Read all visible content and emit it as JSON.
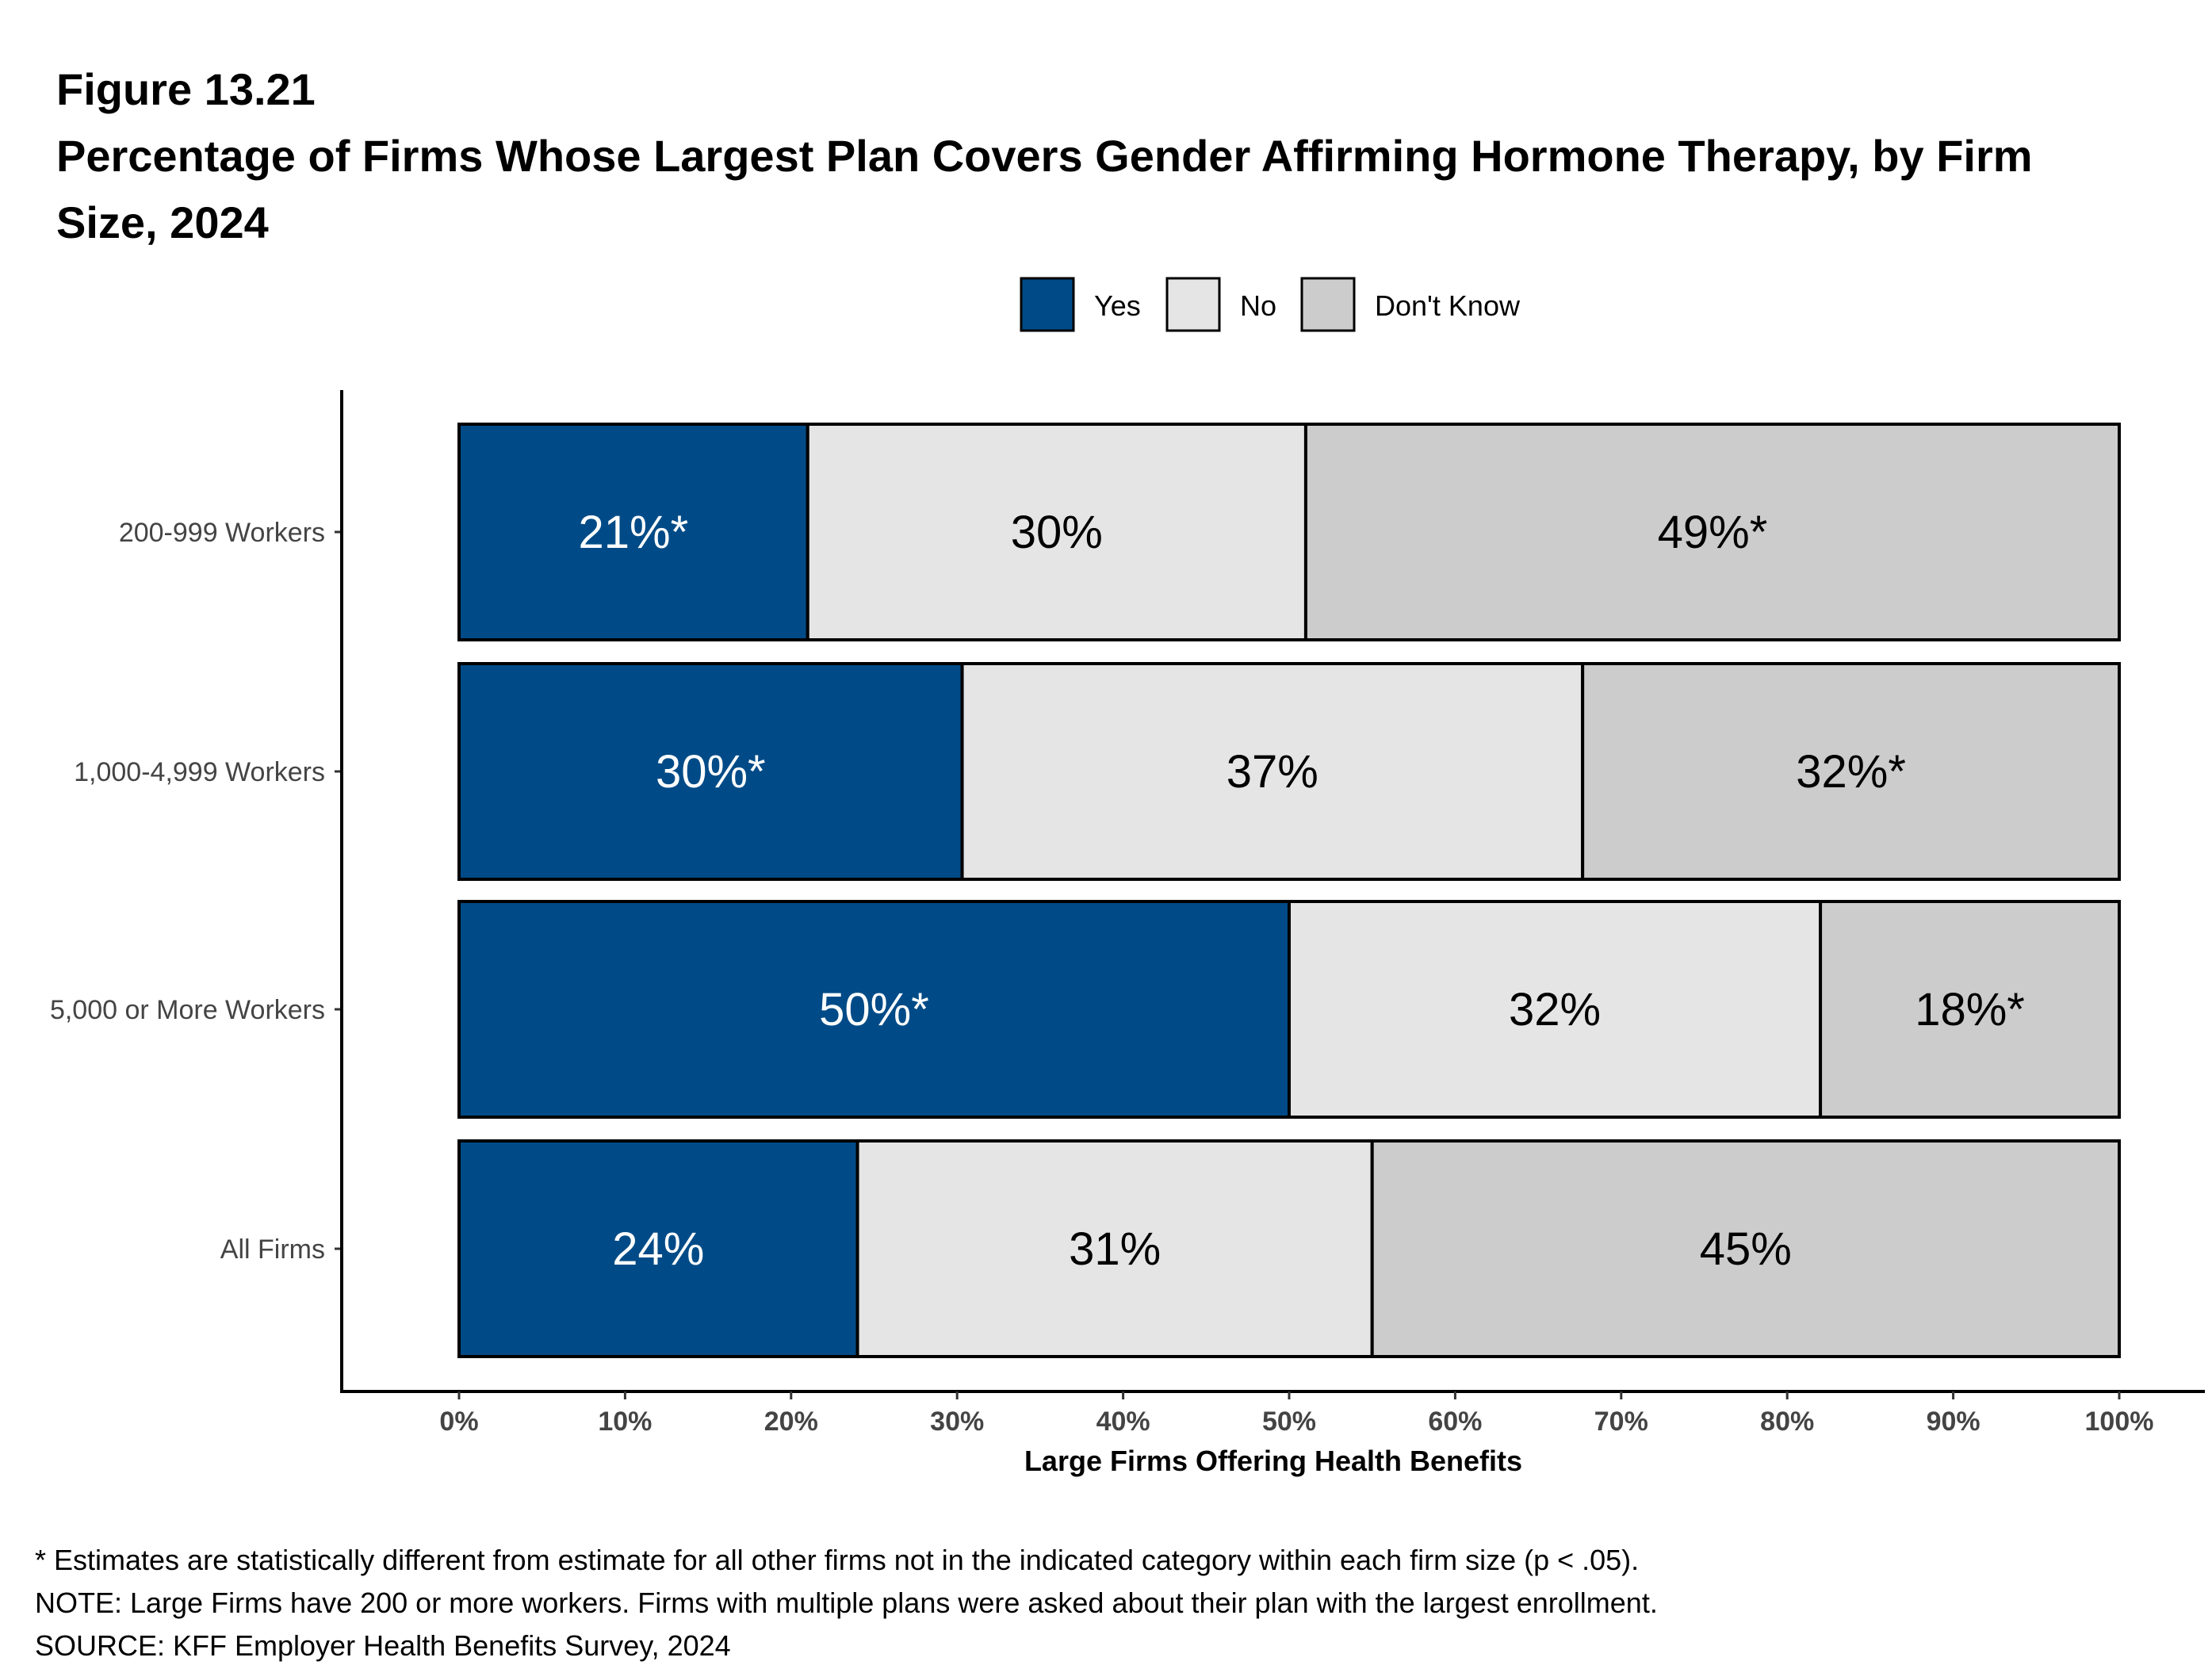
{
  "figure_label": "Figure 13.21",
  "title_line1": "Percentage of Firms Whose Largest Plan Covers Gender Affirming Hormone Therapy, by Firm",
  "title_line2": "Size, 2024",
  "chart_data": {
    "type": "bar",
    "orientation": "horizontal",
    "stacked": true,
    "categories": [
      "200-999 Workers",
      "1,000-4,999 Workers",
      "5,000 or More Workers",
      "All Firms"
    ],
    "series": [
      {
        "name": "Yes",
        "color": "#004B87",
        "values": [
          21,
          30,
          50,
          24
        ],
        "labels": [
          "21%*",
          "30%*",
          "50%*",
          "24%"
        ],
        "label_color": "#ffffff"
      },
      {
        "name": "No",
        "color": "#E5E5E5",
        "values": [
          30,
          37,
          32,
          31
        ],
        "labels": [
          "30%",
          "37%",
          "32%",
          "31%"
        ],
        "label_color": "#000000"
      },
      {
        "name": "Don't Know",
        "color": "#CCCCCC",
        "values": [
          49,
          32,
          18,
          45
        ],
        "labels": [
          "49%*",
          "32%*",
          "18%*",
          "45%"
        ],
        "label_color": "#000000"
      }
    ],
    "xlabel": "Large Firms Offering Health Benefits",
    "ylabel": "",
    "xlim": [
      0,
      100
    ],
    "xticks": [
      "0%",
      "10%",
      "20%",
      "30%",
      "40%",
      "50%",
      "60%",
      "70%",
      "80%",
      "90%",
      "100%"
    ],
    "grid": false,
    "legend_position": "top"
  },
  "notes": [
    "* Estimates are statistically different from estimate for all other firms not in the indicated category within each firm size (p < .05).",
    "NOTE: Large Firms have 200 or more workers.  Firms with multiple plans were asked about their plan with the largest enrollment.",
    "SOURCE: KFF Employer Health Benefits Survey, 2024"
  ]
}
